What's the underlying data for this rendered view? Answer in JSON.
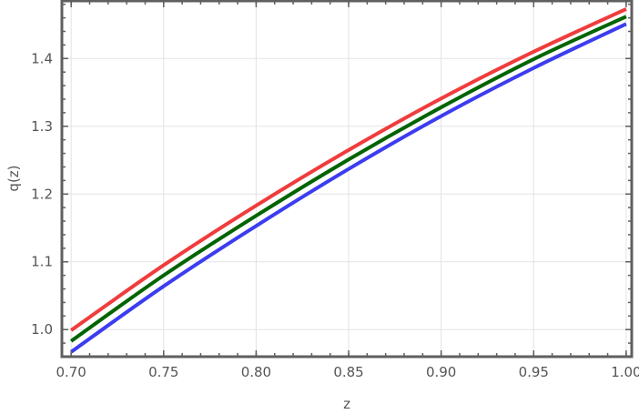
{
  "chart_data": {
    "type": "line",
    "title": "",
    "xlabel": "z",
    "ylabel": "q(z)",
    "xlim": [
      0.695,
      1.003
    ],
    "ylim": [
      0.96,
      1.485
    ],
    "x_ticks": [
      0.7,
      0.75,
      0.8,
      0.85,
      0.9,
      0.95,
      1.0
    ],
    "x_tick_labels": [
      "0.70",
      "0.75",
      "0.80",
      "0.85",
      "0.90",
      "0.95",
      "1.00"
    ],
    "y_ticks": [
      1.0,
      1.1,
      1.2,
      1.3,
      1.4
    ],
    "y_tick_labels": [
      "1.0",
      "1.1",
      "1.2",
      "1.3",
      "1.4"
    ],
    "grid": true,
    "x": [
      0.7,
      0.75,
      0.8,
      0.85,
      0.9,
      0.95,
      1.0
    ],
    "series": [
      {
        "color": "#f03c3c",
        "values": [
          0.999,
          1.095,
          1.183,
          1.265,
          1.341,
          1.41,
          1.473
        ]
      },
      {
        "color": "#006400",
        "values": [
          0.983,
          1.08,
          1.168,
          1.251,
          1.328,
          1.399,
          1.462
        ]
      },
      {
        "color": "#3c3cf0",
        "values": [
          0.967,
          1.064,
          1.153,
          1.237,
          1.315,
          1.386,
          1.451
        ]
      }
    ]
  }
}
